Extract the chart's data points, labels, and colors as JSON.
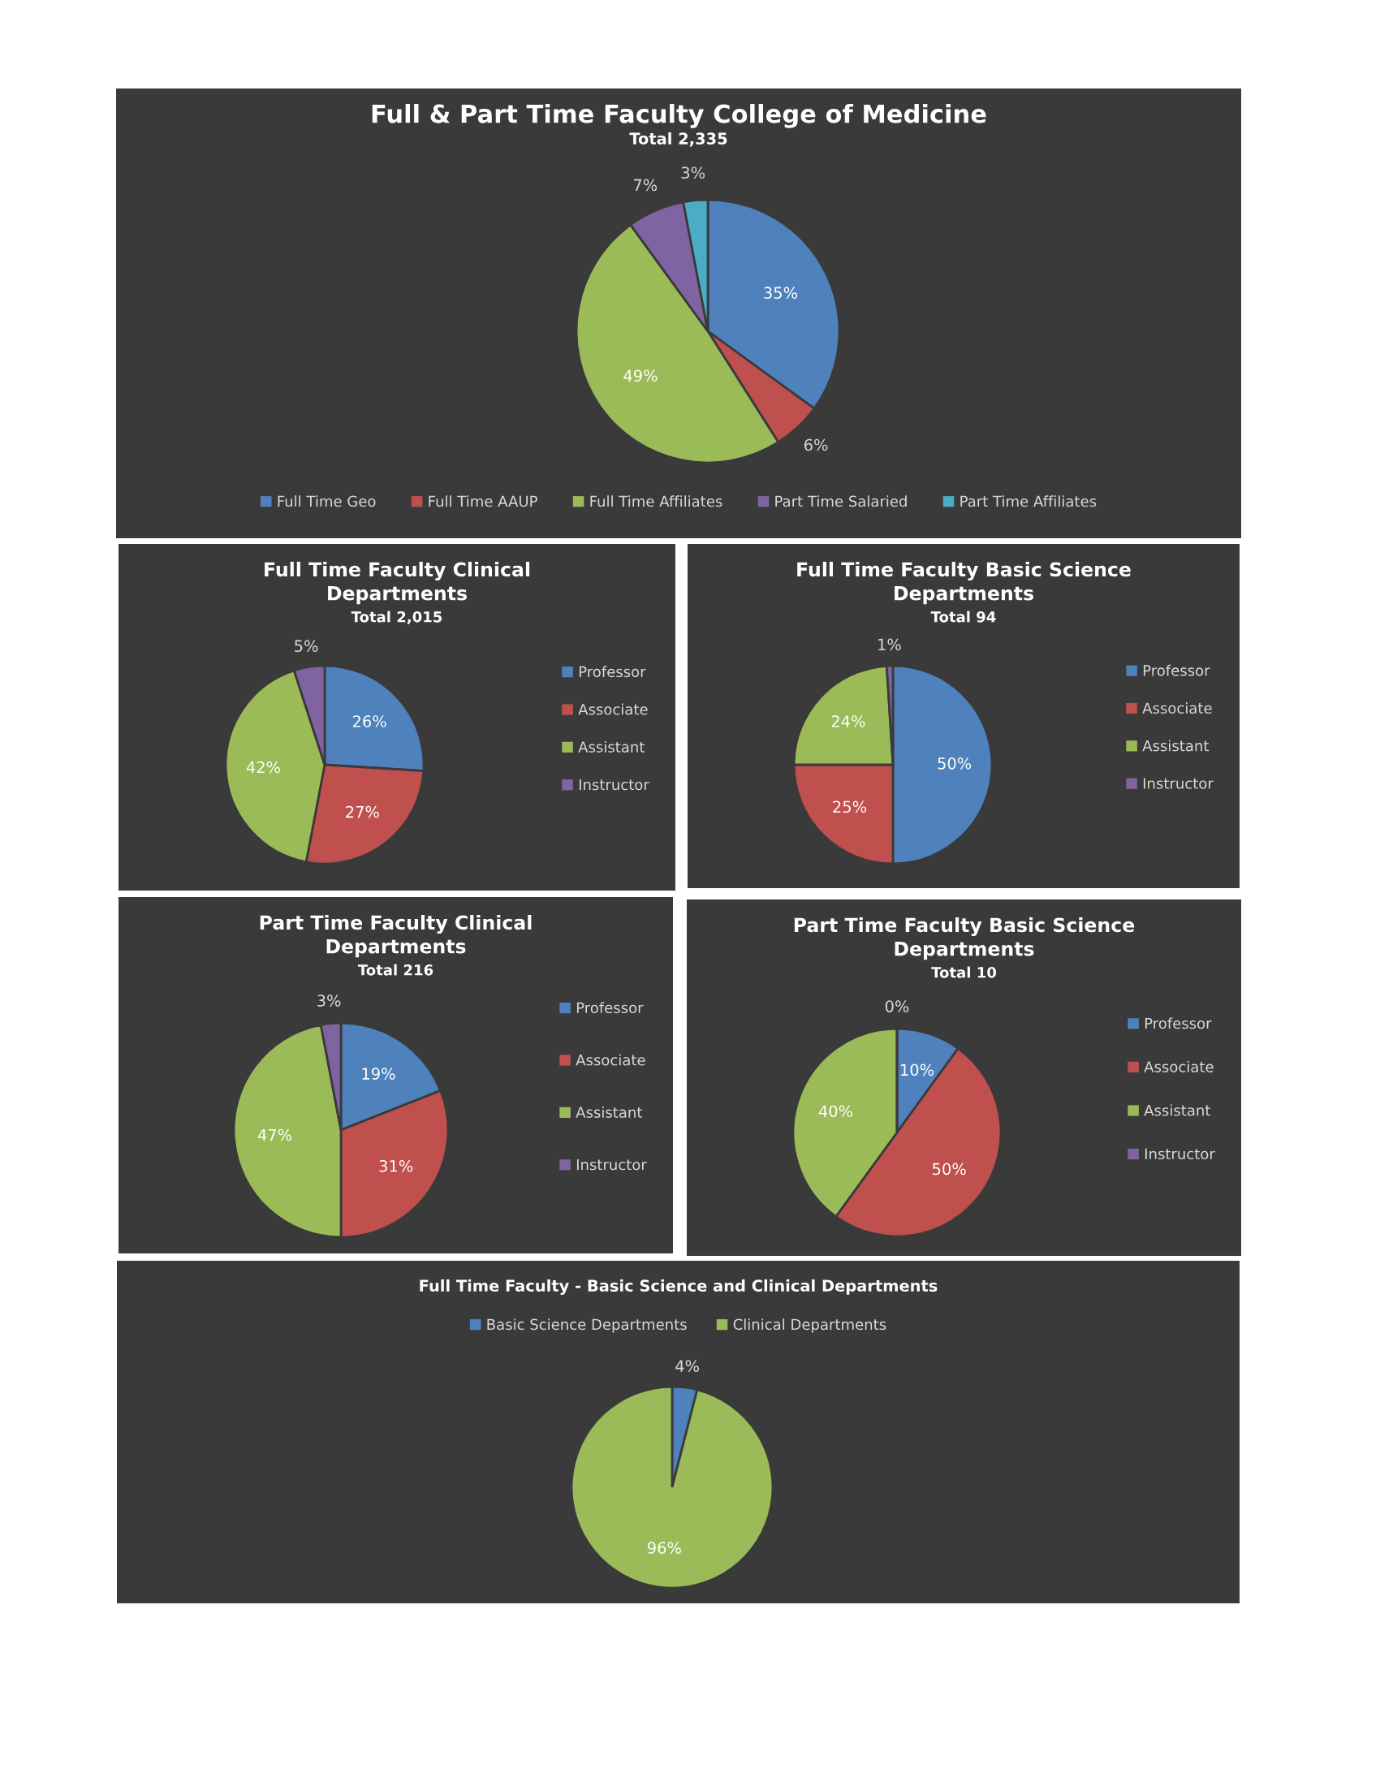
{
  "chart_data": [
    {
      "type": "pie",
      "title": "Full & Part Time Faculty College of Medicine",
      "subtitle": "Total 2,335",
      "categories": [
        "Full Time Geo",
        "Full Time AAUP",
        "Full Time Affiliates",
        "Part Time Salaried",
        "Part Time Affiliates"
      ],
      "values": [
        35,
        6,
        49,
        7,
        3
      ],
      "colors": [
        "#4f81bd",
        "#c0504d",
        "#9bbb59",
        "#8064a2",
        "#4bacc6"
      ],
      "value_labels": [
        "35%",
        "6%",
        "49%",
        "7%",
        "3%"
      ],
      "legend": "bottom"
    },
    {
      "type": "pie",
      "title": "Full Time Faculty Clinical Departments",
      "subtitle": "Total 2,015",
      "categories": [
        "Professor",
        "Associate",
        "Assistant",
        "Instructor"
      ],
      "values": [
        26,
        27,
        42,
        5
      ],
      "colors": [
        "#4f81bd",
        "#c0504d",
        "#9bbb59",
        "#8064a2"
      ],
      "value_labels": [
        "26%",
        "27%",
        "42%",
        "5%"
      ],
      "legend": "right"
    },
    {
      "type": "pie",
      "title": "Full Time Faculty Basic Science Departments",
      "subtitle": "Total 94",
      "categories": [
        "Professor",
        "Associate",
        "Assistant",
        "Instructor"
      ],
      "values": [
        50,
        25,
        24,
        1
      ],
      "colors": [
        "#4f81bd",
        "#c0504d",
        "#9bbb59",
        "#8064a2"
      ],
      "value_labels": [
        "50%",
        "25%",
        "24%",
        "1%"
      ],
      "legend": "right"
    },
    {
      "type": "pie",
      "title": "Part Time Faculty Clinical Departments",
      "subtitle": "Total 216",
      "categories": [
        "Professor",
        "Associate",
        "Assistant",
        "Instructor"
      ],
      "values": [
        19,
        31,
        47,
        3
      ],
      "colors": [
        "#4f81bd",
        "#c0504d",
        "#9bbb59",
        "#8064a2"
      ],
      "value_labels": [
        "19%",
        "31%",
        "47%",
        "3%"
      ],
      "legend": "right"
    },
    {
      "type": "pie",
      "title": "Part Time Faculty Basic Science Departments",
      "subtitle": "Total 10",
      "categories": [
        "Professor",
        "Associate",
        "Assistant",
        "Instructor"
      ],
      "values": [
        10,
        50,
        40,
        0
      ],
      "colors": [
        "#4f81bd",
        "#c0504d",
        "#9bbb59",
        "#8064a2"
      ],
      "value_labels": [
        "10%",
        "50%",
        "40%",
        "0%"
      ],
      "legend": "right"
    },
    {
      "type": "pie",
      "title": "Full Time Faculty - Basic Science and Clinical Departments",
      "categories": [
        "Basic Science Departments",
        "Clinical Departments"
      ],
      "values": [
        4,
        96
      ],
      "colors": [
        "#4f81bd",
        "#9bbb59"
      ],
      "value_labels": [
        "4%",
        "96%"
      ],
      "legend": "top"
    }
  ]
}
